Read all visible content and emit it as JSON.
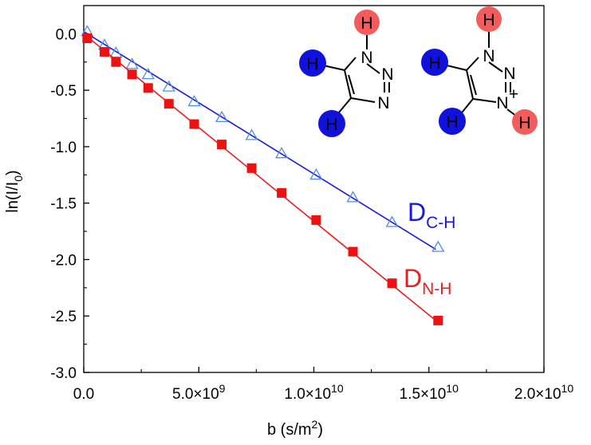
{
  "chart_data": {
    "type": "scatter",
    "xlabel": {
      "main": "b (s/m",
      "sup": "2",
      "tail": ")"
    },
    "ylabel": {
      "main": "ln(I/I",
      "sub": "0",
      "tail": ")"
    },
    "xlim": [
      0,
      20000000000.0
    ],
    "ylim": [
      -3.0,
      0.25
    ],
    "x_ticks": [
      {
        "value": 0,
        "label": "0.0"
      },
      {
        "value": 5000000000.0,
        "label": "5.0×10",
        "exp": "9"
      },
      {
        "value": 10000000000.0,
        "label": "1.0×10",
        "exp": "10"
      },
      {
        "value": 15000000000.0,
        "label": "1.5×10",
        "exp": "10"
      },
      {
        "value": 20000000000.0,
        "label": "2.0×10",
        "exp": "10"
      }
    ],
    "y_ticks": [
      {
        "value": 0.0,
        "label": "0.0"
      },
      {
        "value": -0.5,
        "label": "-0.5"
      },
      {
        "value": -1.0,
        "label": "-1.0"
      },
      {
        "value": -1.5,
        "label": "-1.5"
      },
      {
        "value": -2.0,
        "label": "-2.0"
      },
      {
        "value": -2.5,
        "label": "-2.5"
      },
      {
        "value": -3.0,
        "label": "-3.0"
      }
    ],
    "grid": false,
    "series": [
      {
        "name_main": "D",
        "name_sub": "C-H",
        "color": "#1a1adb",
        "marker_color": "#4f8fe6",
        "marker": "open-triangle",
        "x": [
          150000000.0,
          900000000.0,
          1400000000.0,
          2100000000.0,
          2800000000.0,
          3700000000.0,
          4800000000.0,
          6000000000.0,
          7300000000.0,
          8600000000.0,
          10100000000.0,
          11700000000.0,
          13400000000.0,
          15400000000.0
        ],
        "y": [
          0.02,
          -0.1,
          -0.17,
          -0.27,
          -0.36,
          -0.47,
          -0.6,
          -0.74,
          -0.9,
          -1.06,
          -1.25,
          -1.45,
          -1.67,
          -1.89
        ],
        "fit": {
          "x": [
            0,
            15300000000.0
          ],
          "y": [
            0.02,
            -1.91
          ]
        }
      },
      {
        "name_main": "D",
        "name_sub": "N-H",
        "color": "#ee1c1c",
        "marker_color": "#ee1111",
        "marker": "filled-square",
        "x": [
          150000000.0,
          900000000.0,
          1400000000.0,
          2100000000.0,
          2800000000.0,
          3700000000.0,
          4800000000.0,
          6000000000.0,
          7300000000.0,
          8600000000.0,
          10100000000.0,
          11700000000.0,
          13400000000.0,
          15400000000.0
        ],
        "y": [
          -0.04,
          -0.16,
          -0.25,
          -0.36,
          -0.48,
          -0.62,
          -0.8,
          -0.98,
          -1.19,
          -1.41,
          -1.65,
          -1.93,
          -2.21,
          -2.54
        ],
        "fit": {
          "x": [
            0,
            15300000000.0
          ],
          "y": [
            0.0,
            -2.54
          ]
        }
      }
    ]
  },
  "molecules": {
    "left": {
      "atoms": [
        "H",
        "H",
        "H",
        "N",
        "N",
        "N"
      ],
      "proton_colors": {
        "c_h": "#1111dd",
        "n_h": "#f25c5c"
      }
    },
    "right": {
      "atoms": [
        "H",
        "H",
        "H",
        "H",
        "N",
        "N",
        "N+"
      ],
      "charge": "+"
    }
  }
}
